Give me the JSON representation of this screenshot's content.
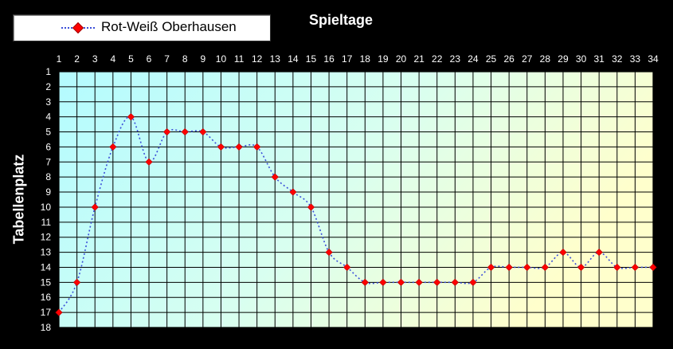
{
  "chart_data": {
    "type": "line",
    "title": "Spieltage",
    "ylabel": "Tabellenplatz",
    "x": [
      1,
      2,
      3,
      4,
      5,
      6,
      7,
      8,
      9,
      10,
      11,
      12,
      13,
      14,
      15,
      16,
      17,
      18,
      19,
      20,
      21,
      22,
      23,
      24,
      25,
      26,
      27,
      28,
      29,
      30,
      31,
      32,
      33,
      34
    ],
    "xlim": [
      1,
      34
    ],
    "ylim": [
      1,
      18
    ],
    "y_inverted": true,
    "x_ticks_position": "top",
    "grid": true,
    "legend_position": "top-left",
    "series": [
      {
        "name": "Rot-Weiß Oberhausen",
        "values": [
          17,
          15,
          10,
          6,
          4,
          7,
          5,
          5,
          5,
          6,
          6,
          6,
          8,
          9,
          10,
          13,
          14,
          15,
          15,
          15,
          15,
          15,
          15,
          15,
          14,
          14,
          14,
          14,
          13,
          14,
          13,
          14,
          14,
          14
        ],
        "color": "#ff0000",
        "line_color": "#3b4ed8",
        "line_style": "dotted",
        "marker": "diamond"
      }
    ]
  },
  "colors": {
    "background": "#000000",
    "grid": "#000000",
    "text": "#ffffff",
    "plot_gradient": [
      "#b3fbff",
      "#ffffcc"
    ]
  }
}
